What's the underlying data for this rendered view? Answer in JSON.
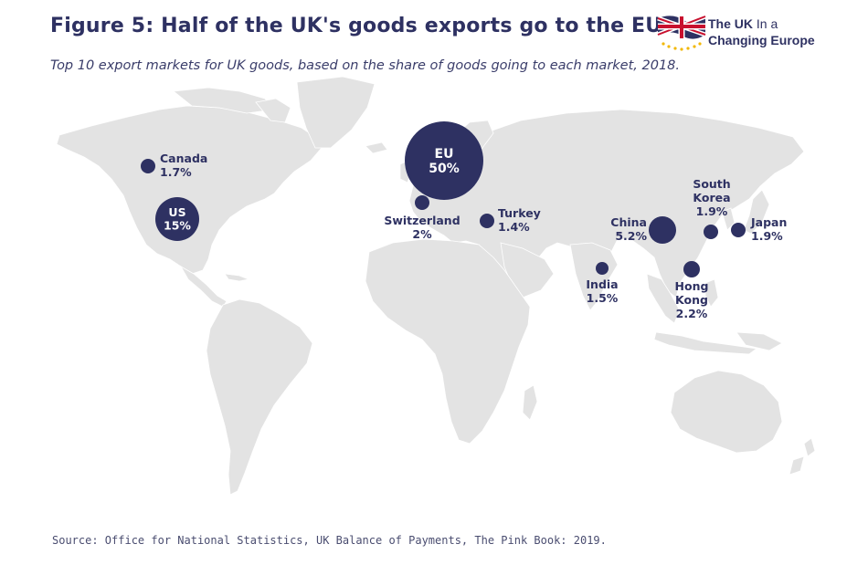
{
  "title": "Figure 5: Half of the UK's goods exports go to the EU",
  "subtitle": "Top 10 export markets for UK goods, based on the share of goods going to each market, 2018.",
  "logo": {
    "line1_bold": "The UK",
    "line1_rest": " In a",
    "line2": "Changing Europe"
  },
  "source": "Source: Office for National Statistics, UK Balance of Payments, The Pink Book: 2019.",
  "colors": {
    "bubble": "#2e3162",
    "land": "#e3e3e3",
    "text": "#2e3162"
  },
  "markets": [
    {
      "name": "EU",
      "share": "50%",
      "value": 50,
      "label_inside": true
    },
    {
      "name": "US",
      "share": "15%",
      "value": 15,
      "label_inside": true
    },
    {
      "name": "Canada",
      "share": "1.7%",
      "value": 1.7
    },
    {
      "name": "Switzerland",
      "share": "2%",
      "value": 2
    },
    {
      "name": "Turkey",
      "share": "1.4%",
      "value": 1.4
    },
    {
      "name": "China",
      "share": "5.2%",
      "value": 5.2
    },
    {
      "name": "South Korea",
      "share": "1.9%",
      "value": 1.9
    },
    {
      "name": "Japan",
      "share": "1.9%",
      "value": 1.9
    },
    {
      "name": "India",
      "share": "1.5%",
      "value": 1.5
    },
    {
      "name": "Hong Kong",
      "share": "2.2%",
      "value": 2.2
    }
  ]
}
